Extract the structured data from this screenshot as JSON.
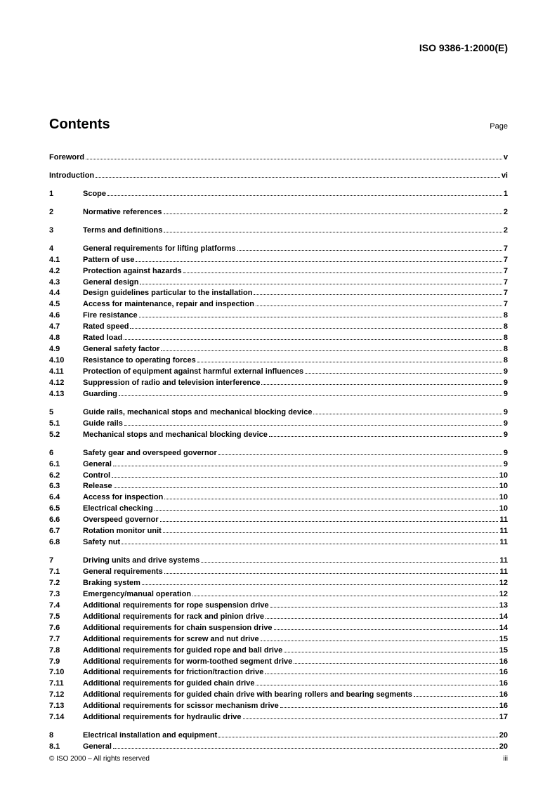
{
  "header": {
    "doc_id": "ISO 9386-1:2000(E)"
  },
  "title": {
    "contents": "Contents",
    "page_label": "Page"
  },
  "footer": {
    "copyright": "© ISO 2000 – All rights reserved",
    "page_num": "iii"
  },
  "toc_groups": [
    {
      "items": [
        {
          "num": "",
          "title": "Foreword",
          "page": "v"
        }
      ]
    },
    {
      "items": [
        {
          "num": "",
          "title": "Introduction",
          "page": "vi"
        }
      ]
    },
    {
      "items": [
        {
          "num": "1",
          "title": "Scope",
          "page": "1"
        }
      ]
    },
    {
      "items": [
        {
          "num": "2",
          "title": "Normative references",
          "page": "2"
        }
      ]
    },
    {
      "items": [
        {
          "num": "3",
          "title": "Terms and definitions",
          "page": "2"
        }
      ]
    },
    {
      "items": [
        {
          "num": "4",
          "title": "General requirements for lifting platforms",
          "page": "7"
        },
        {
          "num": "4.1",
          "title": "Pattern of use",
          "page": "7"
        },
        {
          "num": "4.2",
          "title": "Protection against hazards",
          "page": "7"
        },
        {
          "num": "4.3",
          "title": "General design",
          "page": "7"
        },
        {
          "num": "4.4",
          "title": "Design guidelines particular to the installation",
          "page": "7"
        },
        {
          "num": "4.5",
          "title": "Access for maintenance, repair and inspection",
          "page": "7"
        },
        {
          "num": "4.6",
          "title": "Fire resistance",
          "page": "8"
        },
        {
          "num": "4.7",
          "title": "Rated speed",
          "page": "8"
        },
        {
          "num": "4.8",
          "title": "Rated load",
          "page": "8"
        },
        {
          "num": "4.9",
          "title": "General safety factor",
          "page": "8"
        },
        {
          "num": "4.10",
          "title": "Resistance to operating forces",
          "page": "8"
        },
        {
          "num": "4.11",
          "title": "Protection of equipment against harmful external influences",
          "page": "9"
        },
        {
          "num": "4.12",
          "title": "Suppression of radio and television interference",
          "page": "9"
        },
        {
          "num": "4.13",
          "title": "Guarding",
          "page": "9"
        }
      ]
    },
    {
      "items": [
        {
          "num": "5",
          "title": "Guide rails, mechanical stops and mechanical blocking device",
          "page": "9"
        },
        {
          "num": "5.1",
          "title": "Guide rails",
          "page": "9"
        },
        {
          "num": "5.2",
          "title": "Mechanical stops and mechanical blocking device",
          "page": "9"
        }
      ]
    },
    {
      "items": [
        {
          "num": "6",
          "title": "Safety gear and overspeed governor",
          "page": "9"
        },
        {
          "num": "6.1",
          "title": "General",
          "page": "9"
        },
        {
          "num": "6.2",
          "title": "Control",
          "page": "10"
        },
        {
          "num": "6.3",
          "title": "Release",
          "page": "10"
        },
        {
          "num": "6.4",
          "title": "Access for inspection",
          "page": "10"
        },
        {
          "num": "6.5",
          "title": "Electrical checking",
          "page": "10"
        },
        {
          "num": "6.6",
          "title": "Overspeed governor",
          "page": "11"
        },
        {
          "num": "6.7",
          "title": "Rotation monitor unit",
          "page": "11"
        },
        {
          "num": "6.8",
          "title": "Safety nut",
          "page": "11"
        }
      ]
    },
    {
      "items": [
        {
          "num": "7",
          "title": "Driving units and drive systems",
          "page": "11"
        },
        {
          "num": "7.1",
          "title": "General requirements",
          "page": "11"
        },
        {
          "num": "7.2",
          "title": "Braking system",
          "page": "12"
        },
        {
          "num": "7.3",
          "title": "Emergency/manual operation",
          "page": "12"
        },
        {
          "num": "7.4",
          "title": "Additional requirements for rope suspension drive",
          "page": "13"
        },
        {
          "num": "7.5",
          "title": "Additional requirements for rack and pinion drive",
          "page": "14"
        },
        {
          "num": "7.6",
          "title": "Additional requirements for chain suspension drive",
          "page": "14"
        },
        {
          "num": "7.7",
          "title": "Additional requirements for screw and nut drive",
          "page": "15"
        },
        {
          "num": "7.8",
          "title": "Additional requirements for guided rope and ball drive",
          "page": "15"
        },
        {
          "num": "7.9",
          "title": "Additional requirements for worm-toothed segment drive",
          "page": "16"
        },
        {
          "num": "7.10",
          "title": "Additional requirements for friction/traction drive",
          "page": "16"
        },
        {
          "num": "7.11",
          "title": "Additional requirements for guided chain drive",
          "page": "16"
        },
        {
          "num": "7.12",
          "title": "Additional requirements for guided chain drive with bearing rollers and bearing segments",
          "page": "16"
        },
        {
          "num": "7.13",
          "title": "Additional requirements for scissor mechanism drive",
          "page": "16"
        },
        {
          "num": "7.14",
          "title": "Additional requirements for hydraulic drive",
          "page": "17"
        }
      ]
    },
    {
      "items": [
        {
          "num": "8",
          "title": "Electrical installation and equipment",
          "page": "20"
        },
        {
          "num": "8.1",
          "title": "General",
          "page": "20"
        }
      ]
    }
  ]
}
